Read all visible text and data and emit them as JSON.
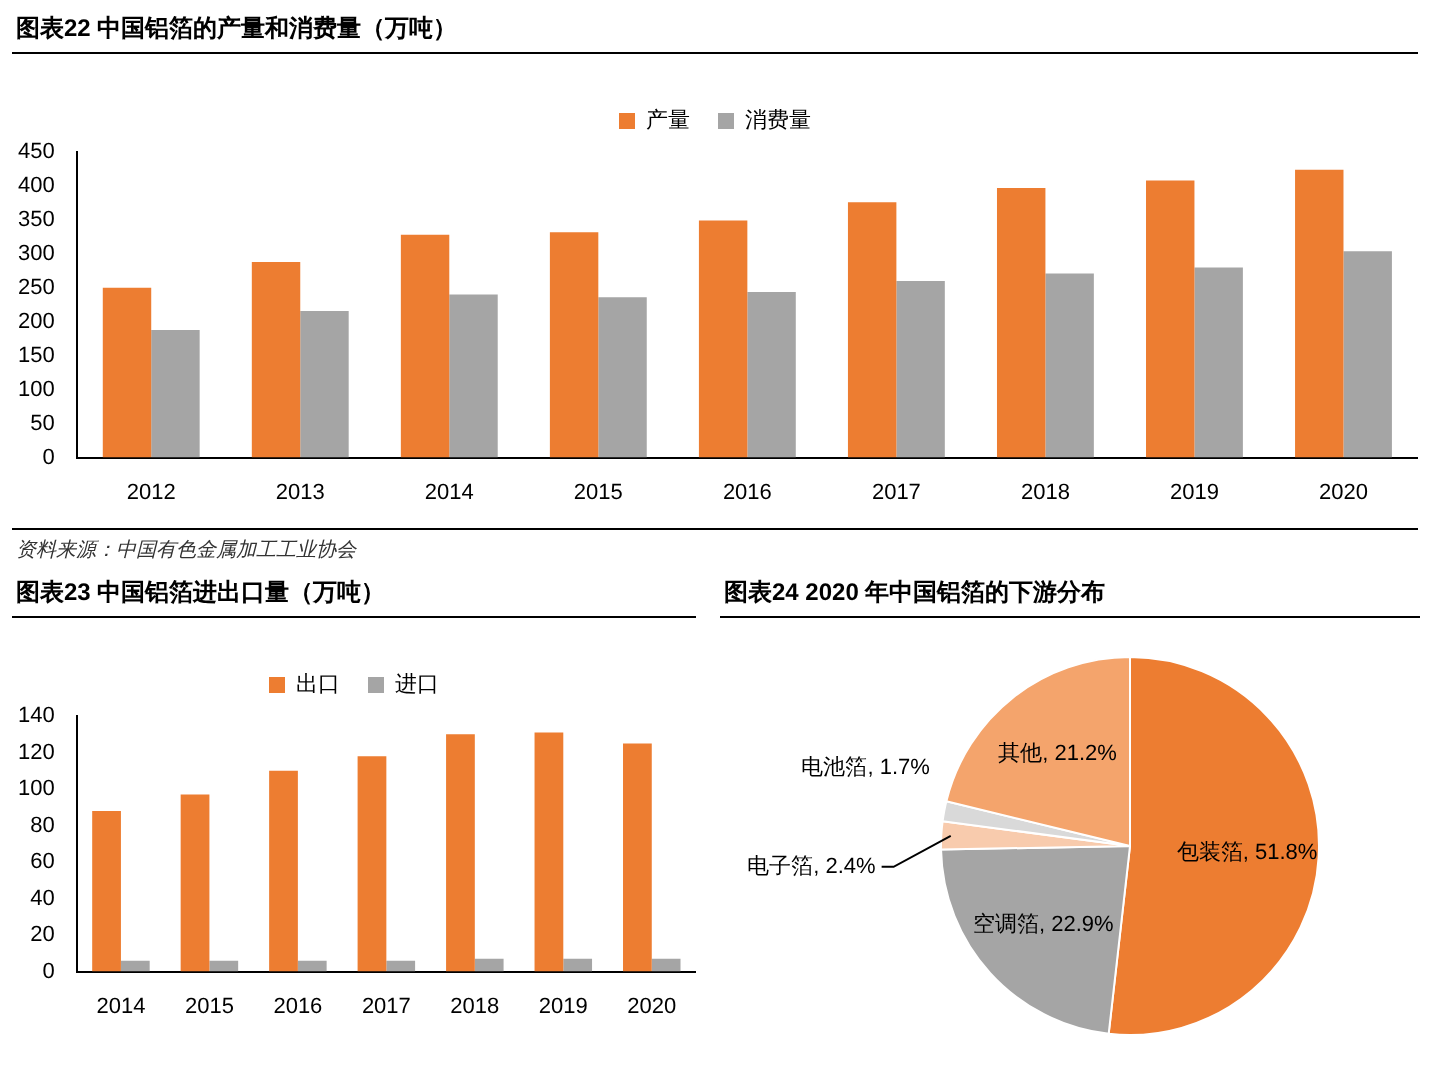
{
  "chart_data": [
    {
      "type": "bar",
      "title": "图表22    中国铝箔的产量和消费量（万吨）",
      "categories": [
        "2012",
        "2013",
        "2014",
        "2015",
        "2016",
        "2017",
        "2018",
        "2019",
        "2020"
      ],
      "series": [
        {
          "name": "产量",
          "color": "#ed7d31",
          "values": [
            250,
            288,
            328,
            332,
            349,
            376,
            397,
            408,
            424
          ]
        },
        {
          "name": "消费量",
          "color": "#a5a5a5",
          "values": [
            188,
            216,
            240,
            236,
            244,
            260,
            271,
            280,
            304
          ]
        }
      ],
      "ylim": [
        0,
        450
      ],
      "yticks": [
        0,
        50,
        100,
        150,
        200,
        250,
        300,
        350,
        400,
        450
      ],
      "grid": false,
      "legend": "top",
      "annotations": [
        "资料来源：中国有色金属加工工业协会"
      ]
    },
    {
      "type": "bar",
      "title": "图表23    中国铝箔进出口量（万吨）",
      "categories": [
        "2014",
        "2015",
        "2016",
        "2017",
        "2018",
        "2019",
        "2020"
      ],
      "series": [
        {
          "name": "出口",
          "color": "#ed7d31",
          "values": [
            88,
            97,
            110,
            118,
            130,
            131,
            125
          ]
        },
        {
          "name": "进口",
          "color": "#a5a5a5",
          "values": [
            6,
            6,
            6,
            6,
            7,
            7,
            7
          ]
        }
      ],
      "ylim": [
        0,
        140
      ],
      "yticks": [
        0,
        20,
        40,
        60,
        80,
        100,
        120,
        140
      ],
      "grid": false,
      "legend": "top"
    },
    {
      "type": "pie",
      "title": "图表24       2020 年中国铝箔的下游分布",
      "categories": [
        "包装箔",
        "空调箔",
        "电子箔",
        "电池箔",
        "其他"
      ],
      "values": [
        51.8,
        22.9,
        2.4,
        1.7,
        21.2
      ],
      "colors": [
        "#ed7d31",
        "#a5a5a5",
        "#f8cbad",
        "#d9d9d9",
        "#f4a46c"
      ],
      "value_labels": [
        "51.8%",
        "22.9%",
        "2.4%",
        "1.7%",
        "21.2%"
      ],
      "legend": false
    }
  ]
}
